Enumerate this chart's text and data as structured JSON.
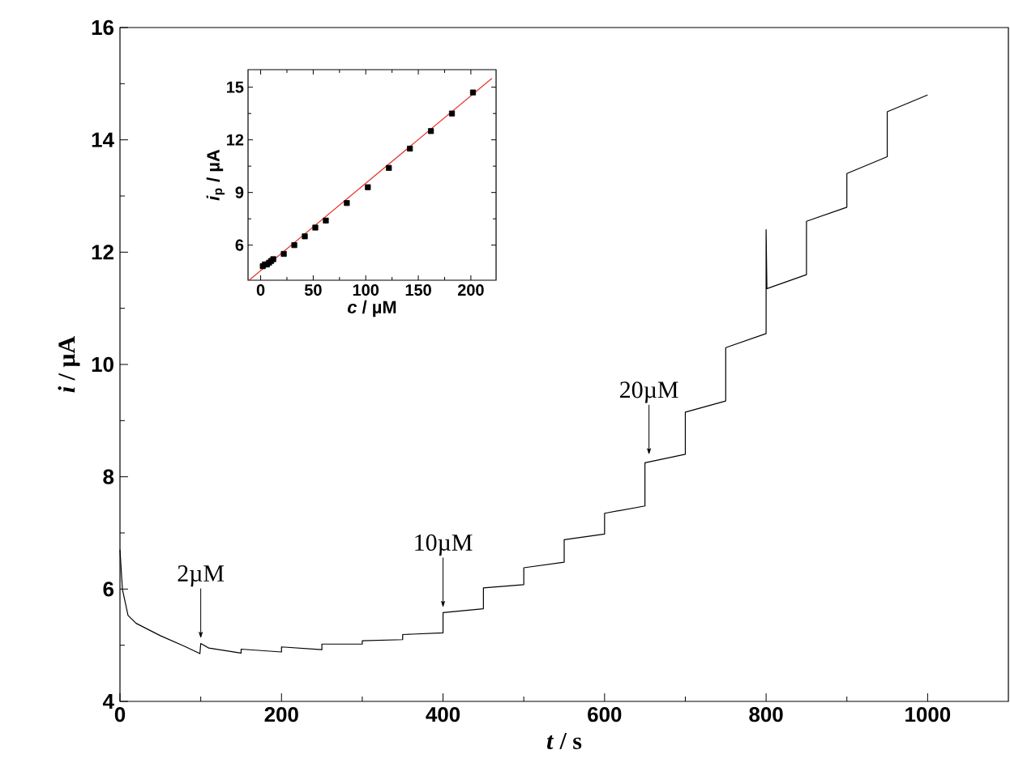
{
  "chart_data": [
    {
      "type": "line",
      "xlabel": "*t* / s",
      "ylabel": "*i* / µA",
      "color": "#000000",
      "x": [
        0,
        3,
        10,
        20,
        50,
        80,
        99,
        100,
        110,
        150,
        150,
        200,
        200,
        250,
        250,
        300,
        300,
        350,
        350,
        400,
        400,
        450,
        450,
        500,
        500,
        550,
        550,
        600,
        600,
        650,
        650,
        700,
        700,
        750,
        750,
        800,
        800,
        801,
        850,
        850,
        900,
        900,
        950,
        950,
        1000
      ],
      "values": [
        6.7,
        6.0,
        5.53,
        5.39,
        5.17,
        4.98,
        4.85,
        5.03,
        4.95,
        4.86,
        4.93,
        4.88,
        4.97,
        4.92,
        5.02,
        5.02,
        5.08,
        5.1,
        5.19,
        5.22,
        5.58,
        5.65,
        6.02,
        6.08,
        6.38,
        6.48,
        6.88,
        6.98,
        7.35,
        7.48,
        8.25,
        8.4,
        9.15,
        9.35,
        10.3,
        10.55,
        12.4,
        11.35,
        11.6,
        12.55,
        12.8,
        13.4,
        13.7,
        14.5,
        14.8
      ],
      "xlim": [
        0,
        1100
      ],
      "ylim": [
        4,
        16
      ],
      "xticks": [
        0,
        200,
        400,
        600,
        800,
        1000
      ],
      "yticks": [
        4,
        6,
        8,
        10,
        12,
        14,
        16
      ],
      "annotations": [
        {
          "text": "2µM",
          "x": 100,
          "y": 5.03
        },
        {
          "text": "10µM",
          "x": 400,
          "y": 5.58
        },
        {
          "text": "20µM",
          "x": 655,
          "y": 8.3
        }
      ]
    },
    {
      "type": "scatter",
      "xlabel": "*c* / µM",
      "ylabel": "*i*$_{p}$ / µA",
      "xlim": [
        -12,
        224
      ],
      "ylim": [
        4,
        16
      ],
      "xticks": [
        0,
        50,
        100,
        150,
        200
      ],
      "yticks": [
        6,
        9,
        12,
        15
      ],
      "series": [
        {
          "type": "scatter",
          "marker": "square",
          "color": "#000000",
          "x": [
            2,
            4,
            6,
            8,
            10,
            12,
            22,
            32,
            42,
            52,
            62,
            82,
            102,
            122,
            142,
            162,
            182,
            202
          ],
          "values": [
            4.8,
            4.9,
            4.9,
            5.0,
            5.1,
            5.2,
            5.5,
            6.0,
            6.5,
            7.0,
            7.4,
            8.4,
            9.3,
            10.4,
            11.5,
            12.5,
            13.5,
            14.7
          ]
        },
        {
          "type": "line",
          "marker": "none",
          "color": "#e8302a",
          "x": [
            -11,
            220
          ],
          "values": [
            4.0,
            15.5
          ]
        }
      ]
    }
  ]
}
